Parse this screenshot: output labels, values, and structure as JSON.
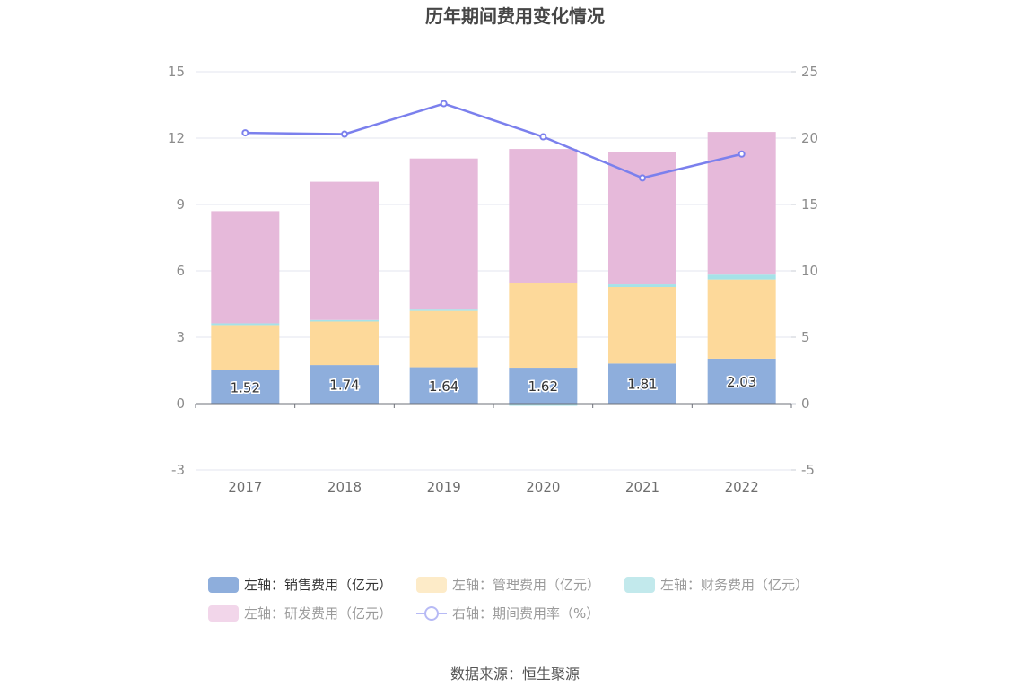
{
  "chart_data": {
    "type": "bar",
    "title": "历年期间费用变化情况",
    "categories": [
      "2017",
      "2018",
      "2019",
      "2020",
      "2021",
      "2022"
    ],
    "stacked": true,
    "left_axis": {
      "ylim": [
        -3,
        15
      ],
      "ticks": [
        "-3",
        "0",
        "3",
        "6",
        "9",
        "12",
        "15"
      ]
    },
    "right_axis": {
      "ylim": [
        -5,
        25
      ],
      "ticks": [
        "-5",
        "0",
        "5",
        "10",
        "15",
        "20",
        "25"
      ]
    },
    "series": [
      {
        "name": "左轴：销售费用（亿元）",
        "axis": "left",
        "color": "#8eaedc",
        "values": [
          1.52,
          1.74,
          1.64,
          1.62,
          1.81,
          2.03
        ],
        "labels": [
          "1.52",
          "1.74",
          "1.64",
          "1.62",
          "1.81",
          "2.03"
        ]
      },
      {
        "name": "左轴：管理费用（亿元）",
        "axis": "left",
        "color": "#fdd99a",
        "values": [
          2.03,
          1.97,
          2.55,
          3.82,
          3.46,
          3.58
        ]
      },
      {
        "name": "左轴：财务费用（亿元）",
        "axis": "left",
        "color": "#a5e2e8",
        "values": [
          0.08,
          0.07,
          0.06,
          -0.1,
          0.12,
          0.22
        ]
      },
      {
        "name": "左轴：研发费用（亿元）",
        "axis": "left",
        "color": "#e6b9da",
        "values": [
          5.07,
          6.25,
          6.83,
          6.07,
          5.99,
          6.45
        ]
      },
      {
        "name": "右轴：期间费用率（%）",
        "axis": "right",
        "type": "line",
        "color": "#7b80ed",
        "values": [
          20.4,
          20.3,
          22.6,
          20.1,
          17.0,
          18.8
        ]
      }
    ],
    "grid": true,
    "legend_position": "bottom"
  },
  "legend": {
    "items": [
      {
        "label": "左轴：销售费用（亿元）",
        "color": "#8eaedc",
        "kind": "rect",
        "active": true
      },
      {
        "label": "左轴：管理费用（亿元）",
        "color": "#fdebc8",
        "kind": "rect",
        "active": false
      },
      {
        "label": "左轴：财务费用（亿元）",
        "color": "#c2e9ec",
        "kind": "rect",
        "active": false
      },
      {
        "label": "左轴：研发费用（亿元）",
        "color": "#f2d6ea",
        "kind": "rect",
        "active": false
      },
      {
        "label": "右轴：期间费用率（%）",
        "color": "#7b80ed",
        "kind": "line",
        "active": false
      }
    ]
  },
  "source": "数据来源：恒生聚源"
}
